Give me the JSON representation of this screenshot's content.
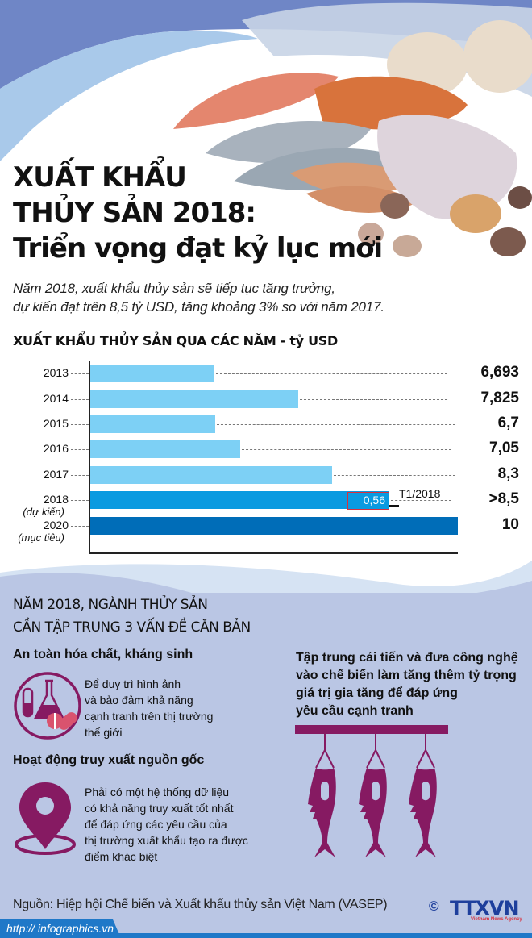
{
  "header": {
    "title_line1": "XUẤT KHẨU",
    "title_line2": "THỦY SẢN 2018:",
    "title_line3": "Triển vọng đạt kỷ lục mới",
    "lead_line1": "Năm 2018, xuất khẩu thủy sản sẽ tiếp tục tăng trưởng,",
    "lead_line2": "dự kiến đạt trên 8,5 tỷ USD, tăng khoảng 3% so với năm 2017."
  },
  "chart_data": {
    "type": "bar",
    "orientation": "horizontal",
    "title": "XUẤT KHẨU THỦY SẢN QUA CÁC NĂM - tỷ USD",
    "xlabel": "",
    "ylabel": "",
    "categories": [
      "2013",
      "2014",
      "2015",
      "2016",
      "2017",
      "2018 (dự kiến)",
      "2020 (mục tiêu)"
    ],
    "values": [
      6.693,
      7.825,
      6.7,
      7.05,
      8.3,
      8.5,
      10
    ],
    "value_labels": [
      "6,693",
      "7,825",
      "6,7",
      "7,05",
      "8,3",
      ">8,5",
      "10"
    ],
    "bar_colors": [
      "#7dd0f5",
      "#7dd0f5",
      "#7dd0f5",
      "#7dd0f5",
      "#7dd0f5",
      "#0a9ae0",
      "#006db8"
    ],
    "annotations": [
      {
        "category": "2018 (dự kiến)",
        "value": 0.56,
        "label": "0,56",
        "note": "T1/2018"
      }
    ],
    "grid": false,
    "legend": null
  },
  "chart": {
    "title": "XUẤT KHẨU THỦY SẢN QUA CÁC NĂM - tỷ USD",
    "rows": [
      {
        "year": "2013",
        "sub": "",
        "value": "6,693",
        "bar_end": 266,
        "color": "#7dd0f5"
      },
      {
        "year": "2014",
        "sub": "",
        "value": "7,825",
        "bar_end": 370,
        "color": "#7dd0f5"
      },
      {
        "year": "2015",
        "sub": "",
        "value": "6,7",
        "bar_end": 267,
        "color": "#7dd0f5"
      },
      {
        "year": "2016",
        "sub": "",
        "value": "7,05",
        "bar_end": 298,
        "color": "#7dd0f5"
      },
      {
        "year": "2017",
        "sub": "",
        "value": "8,3",
        "bar_end": 412,
        "color": "#7dd0f5"
      },
      {
        "year": "2018",
        "sub": "(dự kiến)",
        "value": ">8,5",
        "bar_end": 483,
        "color": "#0a9ae0"
      },
      {
        "year": "2020",
        "sub": "(mục tiêu)",
        "value": "10",
        "bar_end": 568,
        "color": "#006db8"
      }
    ],
    "callout_value": "0,56",
    "callout_label": "T1/2018"
  },
  "section": {
    "title_line1": "NĂM 2018, NGÀNH THỦY SẢN",
    "title_line2": "CẦN TẬP TRUNG 3 VẤN ĐỀ CĂN BẢN",
    "items": [
      {
        "title": "An toàn hóa chất, kháng sinh",
        "lines": [
          "Để duy trì hình ảnh",
          "và bảo đảm khả năng",
          "cạnh tranh trên thị trường",
          "thế giới"
        ],
        "icon": "lab-flask-pill-icon"
      },
      {
        "title": "Hoạt động truy xuất nguồn gốc",
        "lines": [
          "Phải có một hệ thống dữ liệu",
          "có khả năng truy xuất tốt nhất",
          "để đáp ứng các yêu cầu của",
          "thị trường xuất khẩu tạo ra được",
          "điểm khác biệt"
        ],
        "icon": "location-pin-icon"
      },
      {
        "title": "",
        "lines": [
          "Tập trung cải tiến và đưa công nghệ",
          "vào chế biến làm tăng thêm tỷ trọng",
          "giá trị gia tăng để đáp ứng",
          "yêu cầu cạnh tranh"
        ],
        "icon": "hanging-fish-icon"
      }
    ]
  },
  "footer": {
    "source": "Nguồn: Hiệp hội Chế biến và Xuất khẩu thủy sản Việt Nam (VASEP)",
    "url": "http:// infographics.vn",
    "copyright": "©",
    "logo": "TTXVN",
    "logo_sub": "Vietnam News Agency"
  },
  "colors": {
    "purple": "#861a62",
    "pink": "#d9536e",
    "lower_bg": "#bac6e4",
    "hero_blue": "#6f86c6",
    "hero_light": "#a9c9ea",
    "footer_blue": "#1f78c8"
  }
}
